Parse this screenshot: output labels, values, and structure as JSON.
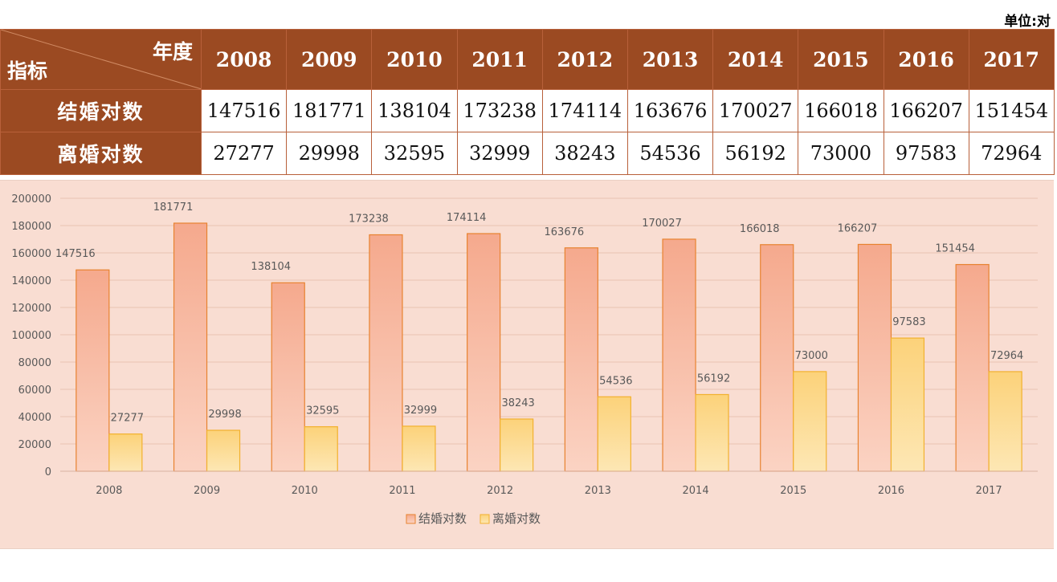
{
  "unit_label": "单位:对",
  "table": {
    "corner_top": "年度",
    "corner_bottom": "指标",
    "years": [
      "2008",
      "2009",
      "2010",
      "2011",
      "2012",
      "2013",
      "2014",
      "2015",
      "2016",
      "2017"
    ],
    "rows": [
      {
        "label": "结婚对数",
        "values": [
          "147516",
          "181771",
          "138104",
          "173238",
          "174114",
          "163676",
          "170027",
          "166018",
          "166207",
          "151454"
        ]
      },
      {
        "label": "离婚对数",
        "values": [
          "27277",
          "29998",
          "32595",
          "32999",
          "38243",
          "54536",
          "56192",
          "73000",
          "97583",
          "72964"
        ]
      }
    ]
  },
  "chart_data": {
    "type": "bar",
    "categories": [
      "2008",
      "2009",
      "2010",
      "2011",
      "2012",
      "2013",
      "2014",
      "2015",
      "2016",
      "2017"
    ],
    "series": [
      {
        "name": "结婚对数",
        "values": [
          147516,
          181771,
          138104,
          173238,
          174114,
          163676,
          170027,
          166018,
          166207,
          151454
        ],
        "color": "#f4ad92",
        "stroke": "#e8822f"
      },
      {
        "name": "离婚对数",
        "values": [
          27277,
          29998,
          32595,
          32999,
          38243,
          54536,
          56192,
          73000,
          97583,
          72964
        ],
        "color": "#fcd98e",
        "stroke": "#f2b12e"
      }
    ],
    "ylim": [
      0,
      200000
    ],
    "yticks": [
      0,
      20000,
      40000,
      60000,
      80000,
      100000,
      120000,
      140000,
      160000,
      180000,
      200000
    ],
    "grid": true,
    "data_labels": true,
    "legend_position": "bottom"
  }
}
